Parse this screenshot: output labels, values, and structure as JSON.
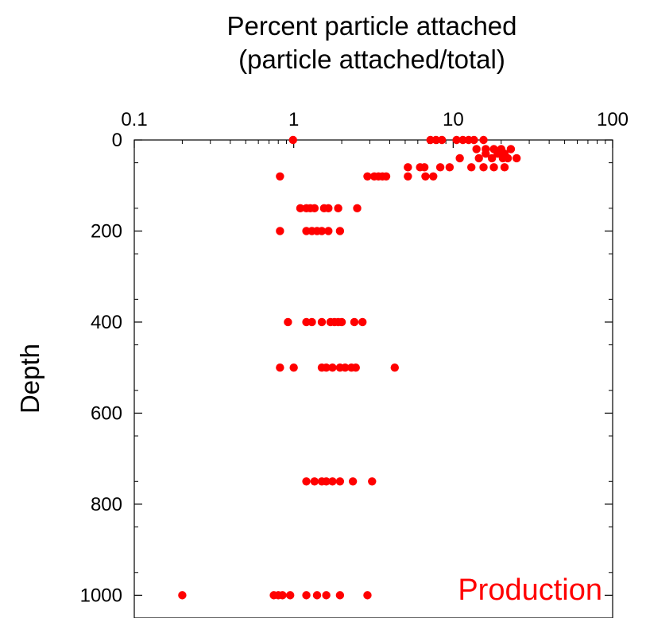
{
  "chart_data": {
    "type": "scatter",
    "title": "Percent particle attached",
    "subtitle": "(particle attached/total)",
    "xlabel": "",
    "ylabel": "Depth",
    "x_scale": "log",
    "xlim": [
      0.1,
      100
    ],
    "ylim": [
      0,
      1050
    ],
    "y_inverted": true,
    "x_axis_position": "top",
    "x_ticks": [
      0.1,
      1,
      10,
      100
    ],
    "x_tick_labels": [
      "0.1",
      "1",
      "10",
      "100"
    ],
    "y_ticks": [
      0,
      200,
      400,
      600,
      800,
      1000
    ],
    "y_tick_labels": [
      "0",
      "200",
      "400",
      "600",
      "800",
      "1000"
    ],
    "grid": false,
    "annotation": "Production",
    "colors": {
      "points": "#ff0000",
      "annotation": "#ff0000",
      "axes": "#000000"
    },
    "series": [
      {
        "points": [
          {
            "x": 0.99,
            "y": 0
          },
          {
            "x": 7.2,
            "y": 0
          },
          {
            "x": 7.8,
            "y": 0
          },
          {
            "x": 8.5,
            "y": 0
          },
          {
            "x": 10.5,
            "y": 0
          },
          {
            "x": 11.5,
            "y": 0
          },
          {
            "x": 12.5,
            "y": 0
          },
          {
            "x": 13.5,
            "y": 0
          },
          {
            "x": 15.5,
            "y": 0
          },
          {
            "x": 14,
            "y": 20
          },
          {
            "x": 16,
            "y": 20
          },
          {
            "x": 18,
            "y": 20
          },
          {
            "x": 20,
            "y": 20
          },
          {
            "x": 23,
            "y": 20
          },
          {
            "x": 16,
            "y": 30
          },
          {
            "x": 19,
            "y": 30
          },
          {
            "x": 21,
            "y": 30
          },
          {
            "x": 11,
            "y": 40
          },
          {
            "x": 14.5,
            "y": 40
          },
          {
            "x": 17.5,
            "y": 40
          },
          {
            "x": 20.5,
            "y": 40
          },
          {
            "x": 22,
            "y": 40
          },
          {
            "x": 25,
            "y": 40
          },
          {
            "x": 8.3,
            "y": 60
          },
          {
            "x": 9.5,
            "y": 60
          },
          {
            "x": 13,
            "y": 60
          },
          {
            "x": 15.5,
            "y": 60
          },
          {
            "x": 18,
            "y": 60
          },
          {
            "x": 21,
            "y": 60
          },
          {
            "x": 5.2,
            "y": 60
          },
          {
            "x": 6.2,
            "y": 60
          },
          {
            "x": 6.6,
            "y": 60
          },
          {
            "x": 0.82,
            "y": 80
          },
          {
            "x": 2.9,
            "y": 80
          },
          {
            "x": 3.2,
            "y": 80
          },
          {
            "x": 3.4,
            "y": 80
          },
          {
            "x": 3.6,
            "y": 80
          },
          {
            "x": 3.8,
            "y": 80
          },
          {
            "x": 5.2,
            "y": 80
          },
          {
            "x": 6.7,
            "y": 80
          },
          {
            "x": 7.5,
            "y": 80
          },
          {
            "x": 1.1,
            "y": 150
          },
          {
            "x": 1.2,
            "y": 150
          },
          {
            "x": 1.27,
            "y": 150
          },
          {
            "x": 1.35,
            "y": 150
          },
          {
            "x": 1.55,
            "y": 150
          },
          {
            "x": 1.65,
            "y": 150
          },
          {
            "x": 1.9,
            "y": 150
          },
          {
            "x": 2.5,
            "y": 150
          },
          {
            "x": 0.82,
            "y": 200
          },
          {
            "x": 1.2,
            "y": 200
          },
          {
            "x": 1.3,
            "y": 200
          },
          {
            "x": 1.4,
            "y": 200
          },
          {
            "x": 1.5,
            "y": 200
          },
          {
            "x": 1.65,
            "y": 200
          },
          {
            "x": 1.95,
            "y": 200
          },
          {
            "x": 0.92,
            "y": 400
          },
          {
            "x": 1.2,
            "y": 400
          },
          {
            "x": 1.3,
            "y": 400
          },
          {
            "x": 1.5,
            "y": 400
          },
          {
            "x": 1.7,
            "y": 400
          },
          {
            "x": 1.8,
            "y": 400
          },
          {
            "x": 1.9,
            "y": 400
          },
          {
            "x": 2.0,
            "y": 400
          },
          {
            "x": 2.4,
            "y": 400
          },
          {
            "x": 2.7,
            "y": 400
          },
          {
            "x": 0.82,
            "y": 500
          },
          {
            "x": 1.0,
            "y": 500
          },
          {
            "x": 1.5,
            "y": 500
          },
          {
            "x": 1.6,
            "y": 500
          },
          {
            "x": 1.75,
            "y": 500
          },
          {
            "x": 1.95,
            "y": 500
          },
          {
            "x": 2.1,
            "y": 500
          },
          {
            "x": 2.3,
            "y": 500
          },
          {
            "x": 2.45,
            "y": 500
          },
          {
            "x": 4.3,
            "y": 500
          },
          {
            "x": 1.2,
            "y": 750
          },
          {
            "x": 1.35,
            "y": 750
          },
          {
            "x": 1.5,
            "y": 750
          },
          {
            "x": 1.6,
            "y": 750
          },
          {
            "x": 1.75,
            "y": 750
          },
          {
            "x": 1.95,
            "y": 750
          },
          {
            "x": 2.35,
            "y": 750
          },
          {
            "x": 3.1,
            "y": 750
          },
          {
            "x": 0.2,
            "y": 1000
          },
          {
            "x": 0.75,
            "y": 1000
          },
          {
            "x": 0.8,
            "y": 1000
          },
          {
            "x": 0.85,
            "y": 1000
          },
          {
            "x": 0.95,
            "y": 1000
          },
          {
            "x": 1.2,
            "y": 1000
          },
          {
            "x": 1.4,
            "y": 1000
          },
          {
            "x": 1.6,
            "y": 1000
          },
          {
            "x": 1.95,
            "y": 1000
          },
          {
            "x": 2.9,
            "y": 1000
          }
        ]
      }
    ]
  }
}
